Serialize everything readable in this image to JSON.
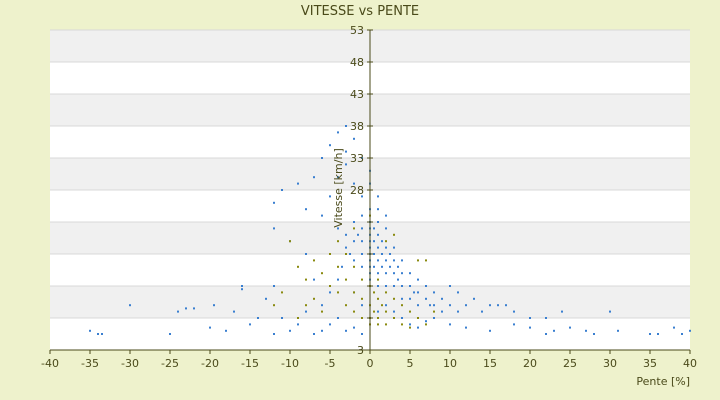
{
  "chart_data": {
    "type": "scatter",
    "title": "VITESSE vs PENTE",
    "xlabel": "Pente [%]",
    "ylabel": "Vitesse [km/h]",
    "xlim": [
      -40,
      40
    ],
    "ylim": [
      3,
      53
    ],
    "xticks": [
      -40,
      -35,
      -30,
      -25,
      -20,
      -15,
      -10,
      -5,
      0,
      5,
      10,
      15,
      20,
      25,
      30,
      35,
      40
    ],
    "yticks": [
      3,
      8,
      13,
      18,
      23,
      28,
      33,
      38,
      43,
      48,
      53
    ],
    "ytick_labels": [
      "3",
      "",
      "",
      "",
      "",
      "28",
      "33",
      "38",
      "43",
      "48",
      "53"
    ],
    "grid": "alternating horizontal bands",
    "legend": "none",
    "colors": {
      "background": "#eef2cc",
      "plot_band_light": "#ffffff",
      "plot_band_dark": "#f0f0f0",
      "axis": "#4a4a1a",
      "series_main": "#3a7fd0",
      "series_secondary": "#8a8a10"
    },
    "series": [
      {
        "color": "#3a7fd0",
        "points": [
          [
            -35,
            6
          ],
          [
            -34,
            5.5
          ],
          [
            -33.5,
            5.5
          ],
          [
            -30,
            10
          ],
          [
            -25,
            5.5
          ],
          [
            -24,
            9
          ],
          [
            -23,
            9.5
          ],
          [
            -22,
            9.5
          ],
          [
            -20,
            6.5
          ],
          [
            -19.5,
            10
          ],
          [
            -18,
            6
          ],
          [
            -17,
            9
          ],
          [
            -16,
            13
          ],
          [
            -16,
            12.5
          ],
          [
            -15,
            7
          ],
          [
            -14,
            8
          ],
          [
            -13,
            11
          ],
          [
            -12,
            13
          ],
          [
            -12,
            5.5
          ],
          [
            -11,
            8
          ],
          [
            -10,
            6
          ],
          [
            -9,
            7
          ],
          [
            -8,
            9
          ],
          [
            -7,
            5.5
          ],
          [
            -6,
            6
          ],
          [
            -5,
            7
          ],
          [
            -4,
            8
          ],
          [
            -3,
            6
          ],
          [
            -2,
            6.5
          ],
          [
            -1,
            5.5
          ],
          [
            -12,
            26
          ],
          [
            -12,
            22
          ],
          [
            -11,
            28
          ],
          [
            -10,
            20
          ],
          [
            -9,
            29
          ],
          [
            -8,
            25
          ],
          [
            -7,
            30
          ],
          [
            -6,
            33
          ],
          [
            -6,
            24
          ],
          [
            -5,
            35
          ],
          [
            -5,
            27
          ],
          [
            -4,
            37
          ],
          [
            -4,
            30
          ],
          [
            -3,
            38
          ],
          [
            -3,
            34
          ],
          [
            -3,
            32
          ],
          [
            -2,
            36
          ],
          [
            -2,
            29
          ],
          [
            -1,
            33
          ],
          [
            -1,
            27
          ],
          [
            0,
            31
          ],
          [
            0,
            29
          ],
          [
            1,
            27
          ],
          [
            1,
            25
          ],
          [
            2,
            24
          ],
          [
            -4,
            22
          ],
          [
            -3,
            21
          ],
          [
            -3,
            19
          ],
          [
            -2,
            23
          ],
          [
            -2,
            20
          ],
          [
            -2,
            17
          ],
          [
            -1,
            22
          ],
          [
            -1,
            20
          ],
          [
            -1,
            18
          ],
          [
            -1,
            16
          ],
          [
            0,
            25
          ],
          [
            0,
            23
          ],
          [
            0,
            22
          ],
          [
            0,
            21
          ],
          [
            0,
            20
          ],
          [
            0,
            19
          ],
          [
            0,
            18
          ],
          [
            0,
            17
          ],
          [
            0,
            16
          ],
          [
            0,
            15
          ],
          [
            0,
            14
          ],
          [
            0.5,
            22
          ],
          [
            0.5,
            20
          ],
          [
            0.5,
            18
          ],
          [
            0.5,
            16
          ],
          [
            1,
            23
          ],
          [
            1,
            21
          ],
          [
            1,
            19
          ],
          [
            1,
            17
          ],
          [
            1,
            15
          ],
          [
            1,
            13
          ],
          [
            1.5,
            20
          ],
          [
            1.5,
            18
          ],
          [
            1.5,
            16
          ],
          [
            2,
            22
          ],
          [
            2,
            19
          ],
          [
            2,
            17
          ],
          [
            2,
            15
          ],
          [
            2,
            13
          ],
          [
            2.5,
            18
          ],
          [
            2.5,
            16
          ],
          [
            3,
            19
          ],
          [
            3,
            17
          ],
          [
            3,
            15
          ],
          [
            3,
            13
          ],
          [
            3.5,
            16
          ],
          [
            3.5,
            14
          ],
          [
            4,
            17
          ],
          [
            4,
            15
          ],
          [
            4,
            13
          ],
          [
            4,
            11
          ],
          [
            5,
            15
          ],
          [
            5,
            13
          ],
          [
            5,
            11
          ],
          [
            5.5,
            12
          ],
          [
            6,
            14
          ],
          [
            6,
            12
          ],
          [
            6,
            10
          ],
          [
            7,
            13
          ],
          [
            7,
            11
          ],
          [
            7.5,
            10
          ],
          [
            8,
            12
          ],
          [
            8,
            10
          ],
          [
            9,
            11
          ],
          [
            9,
            9
          ],
          [
            10,
            13
          ],
          [
            10,
            10
          ],
          [
            11,
            12
          ],
          [
            11,
            9
          ],
          [
            12,
            10
          ],
          [
            13,
            11
          ],
          [
            14,
            9
          ],
          [
            15,
            10
          ],
          [
            16,
            10
          ],
          [
            17,
            10
          ],
          [
            18,
            9
          ],
          [
            20,
            8
          ],
          [
            22,
            8
          ],
          [
            23,
            6
          ],
          [
            24,
            9
          ],
          [
            27,
            6
          ],
          [
            30,
            9
          ],
          [
            31,
            6
          ],
          [
            35,
            5.5
          ],
          [
            36,
            5.5
          ],
          [
            39,
            5.5
          ],
          [
            40,
            6
          ],
          [
            38,
            6.5
          ],
          [
            -1,
            24
          ],
          [
            -1.5,
            21
          ],
          [
            -2.5,
            18
          ],
          [
            -3.5,
            16
          ],
          [
            -4,
            14
          ],
          [
            -5,
            12
          ],
          [
            -6,
            10
          ],
          [
            -7,
            14
          ],
          [
            -8,
            18
          ],
          [
            -2,
            12
          ],
          [
            -1,
            10
          ],
          [
            0,
            8
          ],
          [
            1,
            9
          ],
          [
            2,
            10
          ],
          [
            3,
            9
          ],
          [
            4,
            8
          ],
          [
            5,
            7
          ],
          [
            6,
            6.5
          ],
          [
            7,
            7.5
          ],
          [
            8,
            8
          ],
          [
            10,
            7
          ],
          [
            12,
            6.5
          ],
          [
            15,
            6
          ],
          [
            18,
            7
          ],
          [
            20,
            6.5
          ],
          [
            22,
            5.5
          ],
          [
            25,
            6.5
          ],
          [
            28,
            5.5
          ]
        ]
      },
      {
        "color": "#8a8a10",
        "points": [
          [
            -10,
            20
          ],
          [
            -9,
            16
          ],
          [
            -8,
            14
          ],
          [
            -7,
            17
          ],
          [
            -6,
            15
          ],
          [
            -5,
            13
          ],
          [
            -5,
            18
          ],
          [
            -4,
            16
          ],
          [
            -4,
            12
          ],
          [
            -3,
            18
          ],
          [
            -3,
            14
          ],
          [
            -3,
            10
          ],
          [
            -2,
            16
          ],
          [
            -2,
            12
          ],
          [
            -2,
            9
          ],
          [
            -1,
            14
          ],
          [
            -1,
            11
          ],
          [
            -1,
            8
          ],
          [
            0,
            13
          ],
          [
            0,
            10
          ],
          [
            0,
            8
          ],
          [
            0,
            7
          ],
          [
            0.5,
            12
          ],
          [
            0.5,
            9
          ],
          [
            1,
            14
          ],
          [
            1,
            11
          ],
          [
            1,
            8
          ],
          [
            1,
            7
          ],
          [
            1.5,
            10
          ],
          [
            2,
            12
          ],
          [
            2,
            9
          ],
          [
            2,
            7
          ],
          [
            3,
            11
          ],
          [
            3,
            8
          ],
          [
            4,
            10
          ],
          [
            4,
            7
          ],
          [
            5,
            9
          ],
          [
            5,
            6.5
          ],
          [
            6,
            8
          ],
          [
            7,
            7
          ],
          [
            8,
            9
          ],
          [
            -6,
            9
          ],
          [
            -7,
            11
          ],
          [
            -8,
            10
          ],
          [
            -9,
            8
          ],
          [
            -11,
            12
          ],
          [
            -12,
            10
          ],
          [
            -4,
            20
          ],
          [
            -2,
            22
          ],
          [
            0,
            24
          ],
          [
            2,
            20
          ],
          [
            3,
            21
          ],
          [
            6,
            17
          ],
          [
            7,
            17
          ]
        ]
      }
    ]
  }
}
